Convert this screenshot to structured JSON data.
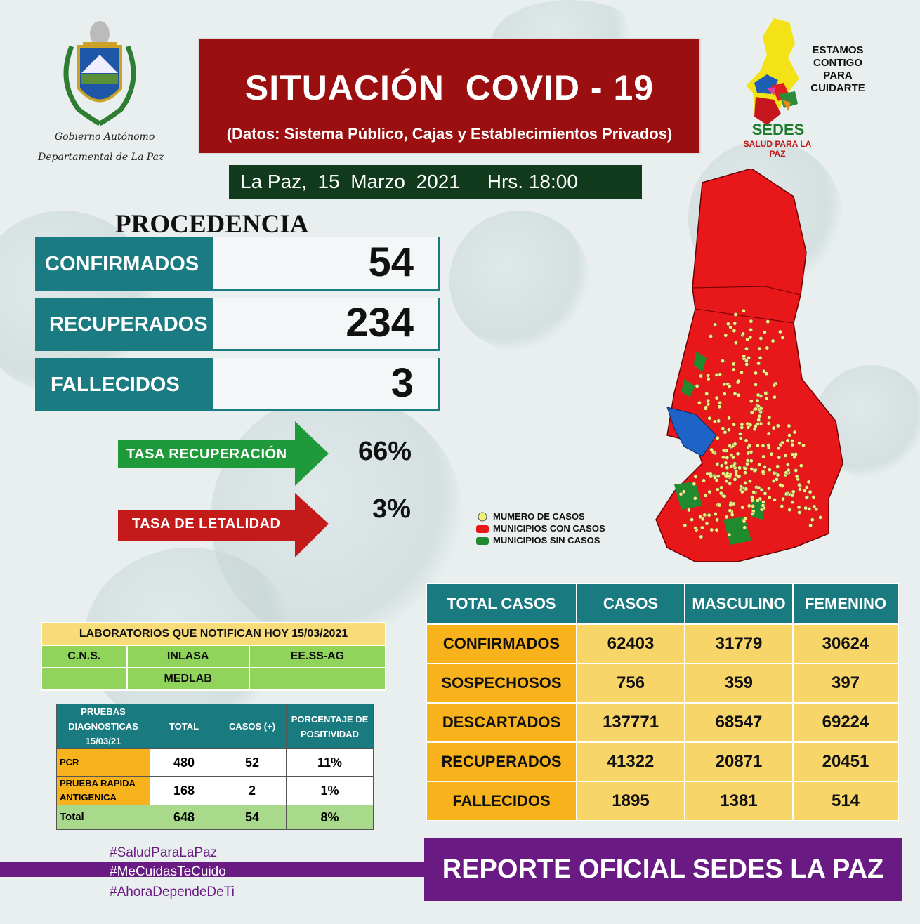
{
  "header": {
    "title": "SITUACIÓN  COVID - 19",
    "subtitle": "(Datos: Sistema Público, Cajas y Establecimientos Privados)",
    "date_line": "La Paz,  15  Marzo  2021     Hrs. 18:00",
    "emblem_caption_1": "Gobierno Autónomo",
    "emblem_caption_2": "Departamental de La Paz",
    "slogan_lines": [
      "ESTAMOS",
      "CONTIGO",
      "PARA",
      "CUIDARTE"
    ],
    "sedes_name": "SEDES",
    "sedes_tagline": "SALUD PARA LA PAZ"
  },
  "procedencia": {
    "title": "PROCEDENCIA",
    "rows": [
      {
        "label": "CONFIRMADOS",
        "value": "54"
      },
      {
        "label": "RECUPERADOS",
        "value": "234"
      },
      {
        "label": "FALLECIDOS",
        "value": "3"
      }
    ],
    "rates": [
      {
        "label": "TASA RECUPERACIÓN",
        "value": "66%",
        "color": "#1f9a3a"
      },
      {
        "label": "TASA  DE LETALIDAD",
        "value": "3%",
        "color": "#c41a1a"
      }
    ]
  },
  "map_legend": [
    {
      "label": "MUMERO DE CASOS",
      "color": "#f2f07a"
    },
    {
      "label": "MUNICIPIOS CON CASOS",
      "color": "#e8171a"
    },
    {
      "label": "MUNICIPIOS SIN CASOS",
      "color": "#1f8a2e"
    }
  ],
  "laboratorios": {
    "title": "LABORATORIOS QUE NOTIFICAN HOY 15/03/2021",
    "row1": [
      "C.N.S.",
      "INLASA",
      "EE.SS-AG"
    ],
    "row2": [
      "",
      "MEDLAB",
      ""
    ]
  },
  "pruebas": {
    "headers": [
      "PRUEBAS DIAGNOSTICAS 15/03/21",
      "TOTAL",
      "CASOS (+)",
      "PORCENTAJE DE POSITIVIDAD"
    ],
    "rows": [
      {
        "label": "PCR",
        "total": "480",
        "casos": "52",
        "pct": "11%"
      },
      {
        "label": "PRUEBA RAPIDA ANTIGENICA",
        "total": "168",
        "casos": "2",
        "pct": "1%"
      },
      {
        "label": "Total",
        "total": "648",
        "casos": "54",
        "pct": "8%"
      }
    ]
  },
  "totales": {
    "headers": [
      "TOTAL CASOS",
      "CASOS",
      "MASCULINO",
      "FEMENINO"
    ],
    "rows": [
      {
        "label": "CONFIRMADOS",
        "casos": "62403",
        "masculino": "31779",
        "femenino": "30624"
      },
      {
        "label": "SOSPECHOSOS",
        "casos": "756",
        "masculino": "359",
        "femenino": "397"
      },
      {
        "label": "DESCARTADOS",
        "casos": "137771",
        "masculino": "68547",
        "femenino": "69224"
      },
      {
        "label": "RECUPERADOS",
        "casos": "41322",
        "masculino": "20871",
        "femenino": "20451"
      },
      {
        "label": "FALLECIDOS",
        "casos": "1895",
        "masculino": "1381",
        "femenino": "514"
      }
    ]
  },
  "footer": {
    "hashtags": [
      "#SaludParaLaPaz",
      "#MeCuidasTeCuido",
      "#AhoraDependeDeTi"
    ],
    "report": "REPORTE OFICIAL SEDES LA PAZ"
  }
}
